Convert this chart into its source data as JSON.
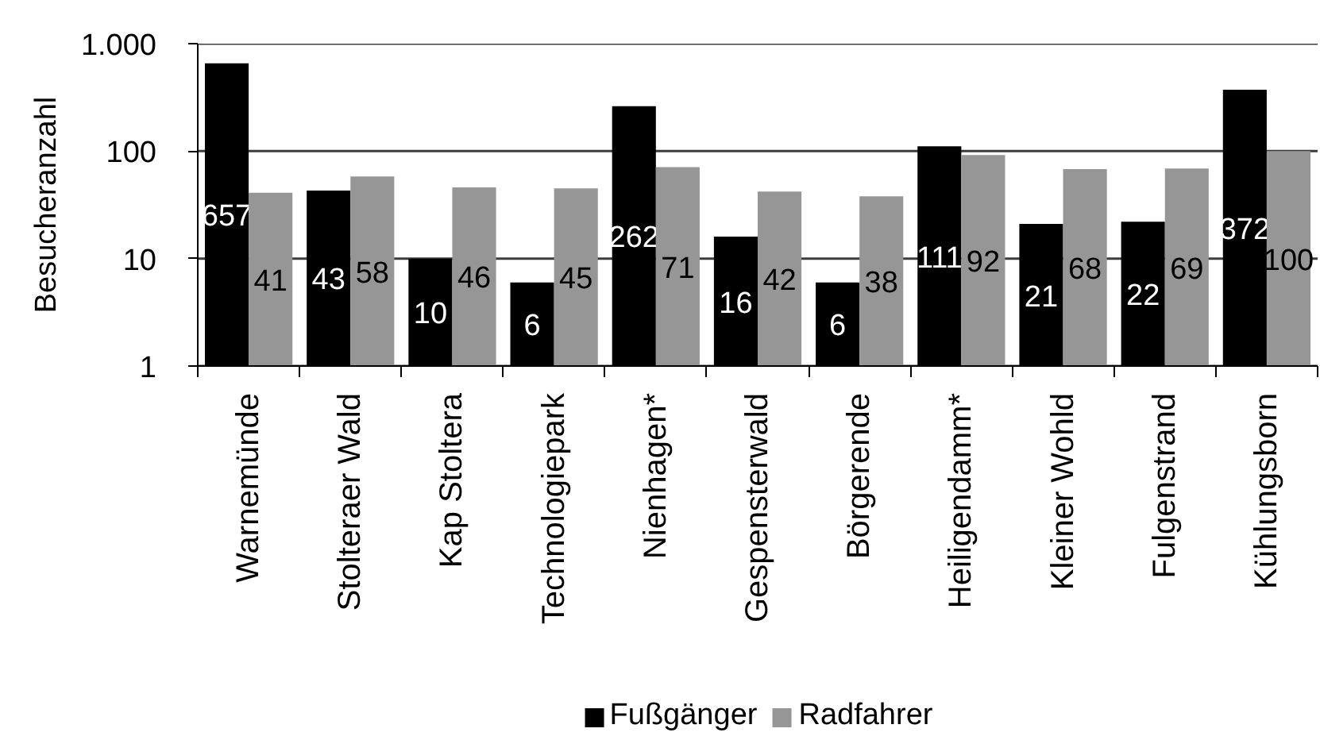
{
  "chart_data": {
    "type": "bar",
    "ylabel": "Besucheranzahl",
    "categories": [
      "Warnemünde",
      "Stolteraer Wald",
      "Kap Stoltera",
      "Technologiepark",
      "Nienhagen*",
      "Gespensterwald",
      "Börgerende",
      "Heiligendamm*",
      "Kleiner Wohld",
      "Fulgenstrand",
      "Kühlungsborn"
    ],
    "series": [
      {
        "name": "Fußgänger",
        "color": "#000000",
        "values": [
          657,
          43,
          10,
          6,
          262,
          16,
          6,
          111,
          21,
          22,
          372
        ]
      },
      {
        "name": "Radfahrer",
        "color": "#969696",
        "values": [
          41,
          58,
          46,
          45,
          71,
          42,
          38,
          92,
          68,
          69,
          100
        ]
      }
    ],
    "log": true,
    "ylim": [
      1,
      1000
    ],
    "yticks": [
      1,
      10,
      100,
      {
        "value": 1000,
        "label": "1.000"
      }
    ],
    "grid": "y",
    "legend": "bottom",
    "data_labels": true
  }
}
